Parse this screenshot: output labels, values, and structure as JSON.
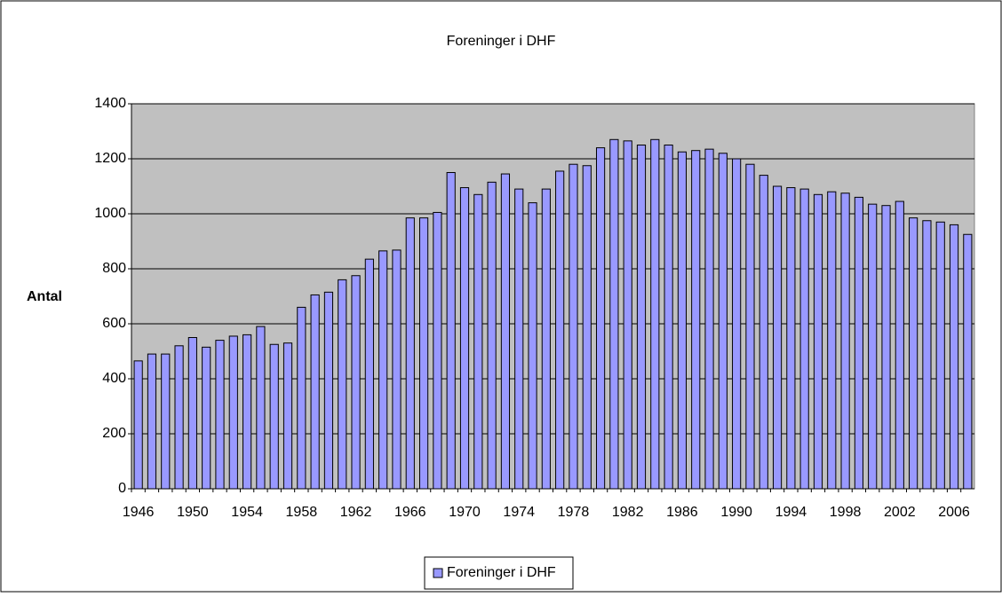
{
  "chart_data": {
    "type": "bar",
    "title": "Foreninger i DHF",
    "ylabel": "Antal",
    "categories": [
      "1946",
      null,
      null,
      null,
      "1950",
      null,
      null,
      null,
      "1954",
      null,
      null,
      null,
      "1958",
      null,
      null,
      null,
      "1962",
      null,
      null,
      null,
      "1966",
      null,
      null,
      null,
      "1970",
      null,
      null,
      null,
      "1974",
      null,
      null,
      null,
      "1978",
      null,
      null,
      null,
      "1982",
      null,
      null,
      null,
      "1986",
      null,
      null,
      null,
      "1990",
      null,
      null,
      null,
      "1994",
      null,
      null,
      null,
      "1998",
      null,
      null,
      null,
      "2002",
      null,
      null,
      null,
      "2006",
      null
    ],
    "series": [
      {
        "name": "Foreninger i DHF",
        "color": "#9999ff",
        "values": [
          465,
          490,
          490,
          520,
          550,
          515,
          540,
          555,
          560,
          590,
          525,
          530,
          660,
          705,
          715,
          760,
          775,
          835,
          865,
          868,
          985,
          985,
          1005,
          1150,
          1095,
          1070,
          1115,
          1145,
          1090,
          1040,
          1090,
          1155,
          1180,
          1175,
          1240,
          1270,
          1265,
          1250,
          1270,
          1250,
          1225,
          1230,
          1235,
          1220,
          1200,
          1180,
          1140,
          1100,
          1095,
          1090,
          1070,
          1080,
          1075,
          1060,
          1035,
          1030,
          1045,
          985,
          975,
          970,
          960,
          925
        ]
      }
    ],
    "ylim": [
      0,
      1400
    ],
    "yticks": [
      0,
      200,
      400,
      600,
      800,
      1000,
      1200,
      1400
    ],
    "grid": true,
    "legend": "bottom"
  }
}
